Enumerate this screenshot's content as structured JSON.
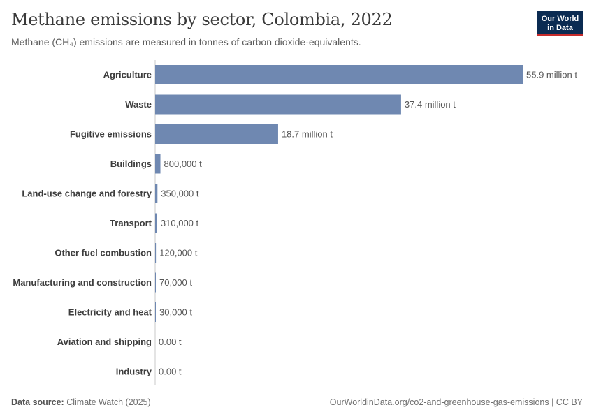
{
  "header": {
    "title": "Methane emissions by sector, Colombia, 2022",
    "subtitle": "Methane (CH₄) emissions are measured in tonnes of carbon dioxide-equivalents."
  },
  "logo": {
    "line1": "Our World",
    "line2": "in Data"
  },
  "footer": {
    "source_label": "Data source:",
    "source": "Climate Watch (2025)",
    "url": "OurWorldinData.org/co2-and-greenhouse-gas-emissions | CC BY"
  },
  "colors": {
    "bar": "#6f88b1",
    "axis": "#c8c8c8",
    "label": "#3d3d3d",
    "value": "#555555"
  },
  "chart_data": {
    "type": "bar",
    "orientation": "horizontal",
    "title": "Methane emissions by sector, Colombia, 2022",
    "unit": "tonnes of CO₂-equivalents",
    "categories": [
      "Agriculture",
      "Waste",
      "Fugitive emissions",
      "Buildings",
      "Land-use change and forestry",
      "Transport",
      "Other fuel combustion",
      "Manufacturing and construction",
      "Electricity and heat",
      "Aviation and shipping",
      "Industry"
    ],
    "values": [
      55900000,
      37400000,
      18700000,
      800000,
      350000,
      310000,
      120000,
      70000,
      30000,
      0,
      0
    ],
    "labels": [
      "55.9 million t",
      "37.4 million t",
      "18.7 million t",
      "800,000 t",
      "350,000 t",
      "310,000 t",
      "120,000 t",
      "70,000 t",
      "30,000 t",
      "0.00 t",
      "0.00 t"
    ],
    "xlim": [
      0,
      55900000
    ]
  }
}
